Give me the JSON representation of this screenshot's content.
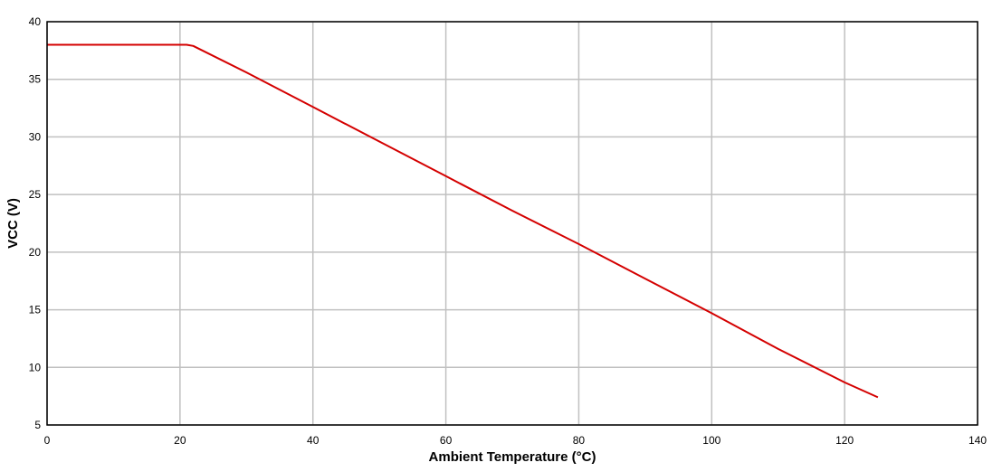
{
  "chart_data": {
    "type": "line",
    "title": "",
    "xlabel": "Ambient Temperature (°C)",
    "ylabel": "VCC (V)",
    "xlim": [
      0,
      140
    ],
    "ylim": [
      5,
      40
    ],
    "xticks": [
      0,
      20,
      40,
      60,
      80,
      100,
      120,
      140
    ],
    "yticks": [
      5,
      10,
      15,
      20,
      25,
      30,
      35,
      40
    ],
    "grid": true,
    "legend": "none",
    "series": [
      {
        "color": "#d40000",
        "x": [
          0,
          21,
          22,
          30,
          40,
          50,
          60,
          70,
          80,
          90,
          100,
          110,
          120,
          125
        ],
        "y": [
          38,
          38,
          37.9,
          35.6,
          32.6,
          29.6,
          26.6,
          23.6,
          20.7,
          17.7,
          14.7,
          11.6,
          8.7,
          7.4
        ]
      }
    ]
  }
}
